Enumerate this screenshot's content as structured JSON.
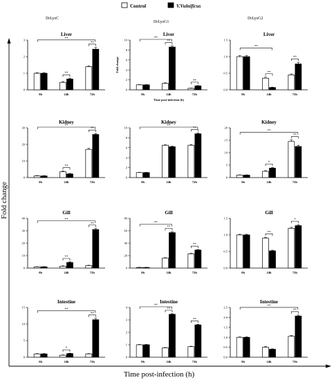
{
  "legend": [
    {
      "label": "Control",
      "fill": "#ffffff"
    },
    {
      "label": "V.Vulnificus",
      "fill": "#000000"
    }
  ],
  "colors": {
    "control": "#ffffff",
    "infected": "#000000",
    "axis": "#000000"
  },
  "column_labels": [
    "DrLysC",
    "DrLysG1",
    "DrLysG2"
  ],
  "ylabel": "Fold change",
  "xlabel": "Time post-infection (h)",
  "chart_data": [
    {
      "type": "bar",
      "title": "Liver",
      "column": 0,
      "row": 0,
      "categories": [
        "0h",
        "24h",
        "72h"
      ],
      "ylim": [
        0,
        3
      ],
      "ticks": [
        0,
        1,
        2,
        3
      ],
      "series": [
        {
          "name": "Control",
          "values": [
            1.0,
            0.45,
            1.4
          ],
          "errors": [
            0.03,
            0.05,
            0.05
          ]
        },
        {
          "name": "V.Vulnificus",
          "values": [
            1.0,
            0.65,
            2.45
          ],
          "errors": [
            0.03,
            0.05,
            0.1
          ]
        }
      ],
      "significance": [
        {
          "from": 0,
          "to": 2,
          "label": "**"
        },
        {
          "from": 1,
          "to": 1,
          "label": "**"
        },
        {
          "from": 2,
          "to": 2,
          "label": "**"
        }
      ]
    },
    {
      "type": "bar",
      "title": "Liver",
      "column": 1,
      "row": 0,
      "categories": [
        "0h",
        "24h",
        "72h"
      ],
      "ylim": [
        0,
        10
      ],
      "ticks": [
        0,
        2,
        4,
        6,
        8,
        10
      ],
      "ylabel": "Fold change",
      "xlabel": "Time post-infection (h)",
      "series": [
        {
          "name": "Control",
          "values": [
            1.0,
            1.3,
            0.3
          ],
          "errors": [
            0.05,
            0.1,
            0.05
          ]
        },
        {
          "name": "V.Vulnificus",
          "values": [
            1.0,
            8.6,
            0.8
          ],
          "errors": [
            0.05,
            0.2,
            0.05
          ]
        }
      ],
      "significance": [
        {
          "from": 0,
          "to": 1,
          "label": "**"
        },
        {
          "from": 1,
          "to": 1,
          "label": "**"
        },
        {
          "from": 2,
          "to": 2,
          "label": "**"
        }
      ]
    },
    {
      "type": "bar",
      "title": "Liver",
      "column": 2,
      "row": 0,
      "categories": [
        "0h",
        "24h",
        "72h"
      ],
      "ylim": [
        0,
        1.5
      ],
      "ticks": [
        0,
        0.5,
        1.0,
        1.5
      ],
      "series": [
        {
          "name": "Control",
          "values": [
            1.0,
            0.35,
            0.45
          ],
          "errors": [
            0.03,
            0.03,
            0.03
          ]
        },
        {
          "name": "V.Vulnificus",
          "values": [
            1.0,
            0.07,
            0.78
          ],
          "errors": [
            0.03,
            0.01,
            0.05
          ]
        }
      ],
      "significance": [
        {
          "from": 0,
          "to": 1,
          "label": "**"
        },
        {
          "from": 1,
          "to": 1,
          "label": "**"
        },
        {
          "from": 2,
          "to": 2,
          "label": "**"
        }
      ]
    },
    {
      "type": "bar",
      "title": "Kidney",
      "column": 0,
      "row": 1,
      "categories": [
        "0h",
        "24h",
        "72h"
      ],
      "ylim": [
        0,
        30
      ],
      "ticks": [
        0,
        10,
        20,
        30
      ],
      "series": [
        {
          "name": "Control",
          "values": [
            1.0,
            3.5,
            17.0
          ],
          "errors": [
            0.2,
            0.4,
            0.6
          ]
        },
        {
          "name": "V.Vulnificus",
          "values": [
            1.0,
            2.2,
            26.0
          ],
          "errors": [
            0.2,
            0.3,
            0.6
          ]
        }
      ],
      "significance": [
        {
          "from": 0,
          "to": 2,
          "label": "**"
        },
        {
          "from": 1,
          "to": 1,
          "label": "**"
        },
        {
          "from": 2,
          "to": 2,
          "label": "**"
        }
      ]
    },
    {
      "type": "bar",
      "title": "Kidney",
      "column": 1,
      "row": 1,
      "categories": [
        "0h",
        "24h",
        "72h"
      ],
      "ylim": [
        0,
        10
      ],
      "ticks": [
        0,
        2,
        4,
        6,
        8,
        10
      ],
      "series": [
        {
          "name": "Control",
          "values": [
            1.0,
            6.5,
            6.5
          ],
          "errors": [
            0.05,
            0.1,
            0.15
          ]
        },
        {
          "name": "V.Vulnificus",
          "values": [
            1.0,
            6.2,
            8.8
          ],
          "errors": [
            0.05,
            0.1,
            0.15
          ]
        }
      ],
      "significance": [
        {
          "from": 0,
          "to": 2,
          "label": "**"
        },
        {
          "from": 2,
          "to": 2,
          "label": "**"
        }
      ]
    },
    {
      "type": "bar",
      "title": "Kidney",
      "column": 2,
      "row": 1,
      "categories": [
        "0h",
        "24h",
        "72h"
      ],
      "ylim": [
        0,
        20
      ],
      "ticks": [
        0,
        5,
        10,
        15,
        20
      ],
      "series": [
        {
          "name": "Control",
          "values": [
            1.0,
            2.5,
            14.5
          ],
          "errors": [
            0.1,
            0.3,
            0.6
          ]
        },
        {
          "name": "V.Vulnificus",
          "values": [
            1.0,
            3.8,
            12.5
          ],
          "errors": [
            0.1,
            0.3,
            0.5
          ]
        }
      ],
      "significance": [
        {
          "from": 0,
          "to": 2,
          "label": "**"
        },
        {
          "from": 1,
          "to": 1,
          "label": "*"
        },
        {
          "from": 2,
          "to": 2,
          "label": "**"
        }
      ]
    },
    {
      "type": "bar",
      "title": "Gill",
      "column": 0,
      "row": 2,
      "categories": [
        "0h",
        "24h",
        "72h"
      ],
      "ylim": [
        0,
        40
      ],
      "ticks": [
        0,
        10,
        20,
        30,
        40
      ],
      "series": [
        {
          "name": "Control",
          "values": [
            1.0,
            1.5,
            2.0
          ],
          "errors": [
            0.2,
            0.3,
            0.3
          ]
        },
        {
          "name": "V.Vulnificus",
          "values": [
            1.0,
            4.5,
            31.0
          ],
          "errors": [
            0.2,
            0.5,
            0.8
          ]
        }
      ],
      "significance": [
        {
          "from": 0,
          "to": 2,
          "label": "**"
        },
        {
          "from": 1,
          "to": 1,
          "label": "**"
        },
        {
          "from": 2,
          "to": 2,
          "label": "**"
        }
      ]
    },
    {
      "type": "bar",
      "title": "Gill",
      "column": 1,
      "row": 2,
      "categories": [
        "0h",
        "24h",
        "72h"
      ],
      "ylim": [
        0,
        80
      ],
      "ticks": [
        0,
        20,
        40,
        60,
        80
      ],
      "series": [
        {
          "name": "Control",
          "values": [
            1.0,
            16.0,
            23.0
          ],
          "errors": [
            0.3,
            0.6,
            0.8
          ]
        },
        {
          "name": "V.Vulnificus",
          "values": [
            1.0,
            57.0,
            29.0
          ],
          "errors": [
            0.3,
            1.2,
            0.8
          ]
        }
      ],
      "significance": [
        {
          "from": 0,
          "to": 1,
          "label": "**"
        },
        {
          "from": 1,
          "to": 1,
          "label": "**"
        },
        {
          "from": 2,
          "to": 2,
          "label": "**"
        }
      ]
    },
    {
      "type": "bar",
      "title": "Gill",
      "column": 2,
      "row": 2,
      "categories": [
        "0h",
        "24h",
        "72h"
      ],
      "ylim": [
        0,
        1.5
      ],
      "ticks": [
        0,
        0.5,
        1.0,
        1.5
      ],
      "series": [
        {
          "name": "Control",
          "values": [
            1.0,
            0.9,
            1.2
          ],
          "errors": [
            0.02,
            0.03,
            0.03
          ]
        },
        {
          "name": "V.Vulnificus",
          "values": [
            1.0,
            0.52,
            1.28
          ],
          "errors": [
            0.02,
            0.02,
            0.03
          ]
        }
      ],
      "significance": [
        {
          "from": 1,
          "to": 1,
          "label": "**"
        },
        {
          "from": 2,
          "to": 2,
          "label": "*"
        }
      ]
    },
    {
      "type": "bar",
      "title": "Intestine",
      "column": 0,
      "row": 3,
      "categories": [
        "0h",
        "24h",
        "72h"
      ],
      "ylim": [
        0,
        15
      ],
      "ticks": [
        0,
        5,
        10,
        15
      ],
      "series": [
        {
          "name": "Control",
          "values": [
            1.0,
            0.6,
            1.0
          ],
          "errors": [
            0.1,
            0.1,
            0.1
          ]
        },
        {
          "name": "V.Vulnificus",
          "values": [
            1.0,
            1.1,
            11.3
          ],
          "errors": [
            0.1,
            0.1,
            0.4
          ]
        }
      ],
      "significance": [
        {
          "from": 0,
          "to": 2,
          "label": "**"
        },
        {
          "from": 1,
          "to": 1,
          "label": "*"
        },
        {
          "from": 2,
          "to": 2,
          "label": "**"
        }
      ]
    },
    {
      "type": "bar",
      "title": "Intestine",
      "column": 1,
      "row": 3,
      "categories": [
        "0h",
        "24h",
        "72h"
      ],
      "ylim": [
        0,
        4
      ],
      "ticks": [
        0,
        1,
        2,
        3,
        4
      ],
      "series": [
        {
          "name": "Control",
          "values": [
            1.0,
            0.75,
            0.85
          ],
          "errors": [
            0.03,
            0.03,
            0.03
          ]
        },
        {
          "name": "V.Vulnificus",
          "values": [
            1.0,
            3.45,
            2.6
          ],
          "errors": [
            0.03,
            0.05,
            0.05
          ]
        }
      ],
      "significance": [
        {
          "from": 0,
          "to": 1,
          "label": "**"
        },
        {
          "from": 1,
          "to": 1,
          "label": "**"
        },
        {
          "from": 2,
          "to": 2,
          "label": "**"
        }
      ]
    },
    {
      "type": "bar",
      "title": "Intestine",
      "column": 2,
      "row": 3,
      "categories": [
        "0h",
        "24h",
        "72h"
      ],
      "ylim": [
        0,
        2.5
      ],
      "ticks": [
        0,
        0.5,
        1.0,
        1.5,
        2.0,
        2.5
      ],
      "series": [
        {
          "name": "Control",
          "values": [
            1.0,
            0.5,
            1.05
          ],
          "errors": [
            0.02,
            0.03,
            0.04
          ]
        },
        {
          "name": "V.Vulnificus",
          "values": [
            1.0,
            0.4,
            2.07
          ],
          "errors": [
            0.02,
            0.02,
            0.05
          ]
        }
      ],
      "significance": [
        {
          "from": 0,
          "to": 2,
          "label": "**"
        },
        {
          "from": 2,
          "to": 2,
          "label": "**"
        }
      ]
    }
  ]
}
